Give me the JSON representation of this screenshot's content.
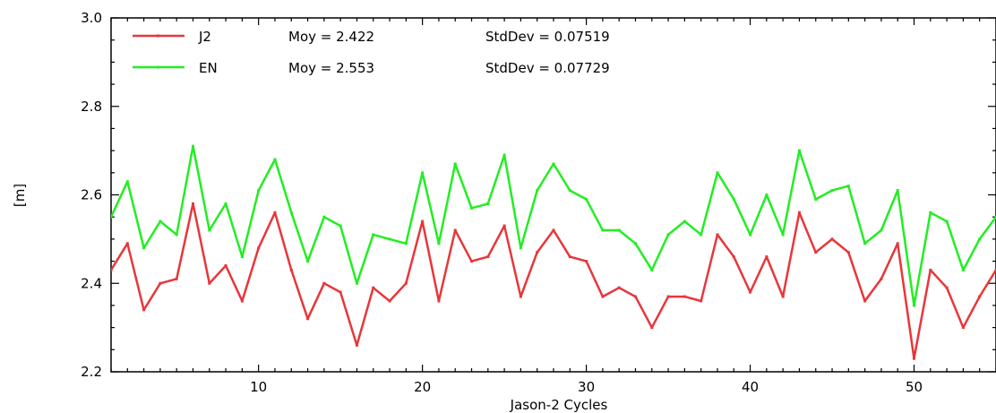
{
  "chart_data": {
    "type": "line",
    "xlabel": "Jason-2 Cycles",
    "ylabel": "[m]",
    "xlim": [
      1,
      55
    ],
    "ylim": [
      2.2,
      3.0
    ],
    "x_ticks": [
      10,
      20,
      30,
      40,
      50
    ],
    "y_ticks": [
      2.2,
      2.4,
      2.6,
      2.8,
      3.0
    ],
    "x_tick_labels": [
      "10",
      "20",
      "30",
      "40",
      "50"
    ],
    "y_tick_labels": [
      "2.2",
      "2.4",
      "2.6",
      "2.8",
      "3.0"
    ],
    "grid": false,
    "legend_position": "top-left",
    "x": [
      1,
      2,
      3,
      4,
      5,
      6,
      7,
      8,
      9,
      10,
      11,
      12,
      13,
      14,
      15,
      16,
      17,
      18,
      19,
      20,
      21,
      22,
      23,
      24,
      25,
      26,
      27,
      28,
      29,
      30,
      31,
      32,
      33,
      34,
      35,
      36,
      37,
      38,
      39,
      40,
      41,
      42,
      43,
      44,
      45,
      46,
      47,
      48,
      49,
      50,
      51,
      52,
      53,
      54,
      55
    ],
    "series": [
      {
        "name": "J2",
        "color": "#e8363a",
        "legend_mean": "Moy = 2.422",
        "legend_std": "StdDev = 0.07519",
        "values": [
          2.43,
          2.49,
          2.34,
          2.4,
          2.41,
          2.58,
          2.4,
          2.44,
          2.36,
          2.48,
          2.56,
          2.43,
          2.32,
          2.4,
          2.38,
          2.26,
          2.39,
          2.36,
          2.4,
          2.54,
          2.36,
          2.52,
          2.45,
          2.46,
          2.53,
          2.37,
          2.47,
          2.52,
          2.46,
          2.45,
          2.37,
          2.39,
          2.37,
          2.3,
          2.37,
          2.37,
          2.36,
          2.51,
          2.46,
          2.38,
          2.46,
          2.37,
          2.56,
          2.47,
          2.5,
          2.47,
          2.36,
          2.41,
          2.49,
          2.23,
          2.43,
          2.39,
          2.3,
          2.37,
          2.43
        ]
      },
      {
        "name": "EN",
        "color": "#22ee22",
        "legend_mean": "Moy = 2.553",
        "legend_std": "StdDev = 0.07729",
        "values": [
          2.55,
          2.63,
          2.48,
          2.54,
          2.51,
          2.71,
          2.52,
          2.58,
          2.46,
          2.61,
          2.68,
          2.56,
          2.45,
          2.55,
          2.53,
          2.4,
          2.51,
          2.5,
          2.49,
          2.65,
          2.49,
          2.67,
          2.57,
          2.58,
          2.69,
          2.48,
          2.61,
          2.67,
          2.61,
          2.59,
          2.52,
          2.52,
          2.49,
          2.43,
          2.51,
          2.54,
          2.51,
          2.65,
          2.59,
          2.51,
          2.6,
          2.51,
          2.7,
          2.59,
          2.61,
          2.62,
          2.49,
          2.52,
          2.61,
          2.35,
          2.56,
          2.54,
          2.43,
          2.5,
          2.55
        ]
      }
    ]
  }
}
